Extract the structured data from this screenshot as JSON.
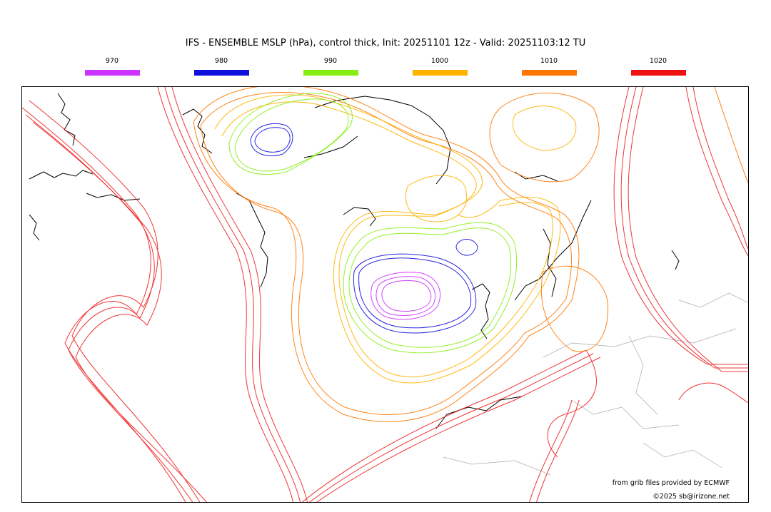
{
  "title": "IFS - ENSEMBLE MSLP (hPa), control thick, Init: 20251101 12z - Valid: 20251103:12 TU",
  "legend": [
    {
      "label": "970",
      "color": "#cc33ff"
    },
    {
      "label": "980",
      "color": "#1010dd"
    },
    {
      "label": "990",
      "color": "#88ee11"
    },
    {
      "label": "1000",
      "color": "#ffb300"
    },
    {
      "label": "1010",
      "color": "#ff7700"
    },
    {
      "label": "1020",
      "color": "#ee1111"
    }
  ],
  "credits": {
    "source": "from grib files provided by ECMWF",
    "copyright": "©2025 sb@irizone.net"
  }
}
